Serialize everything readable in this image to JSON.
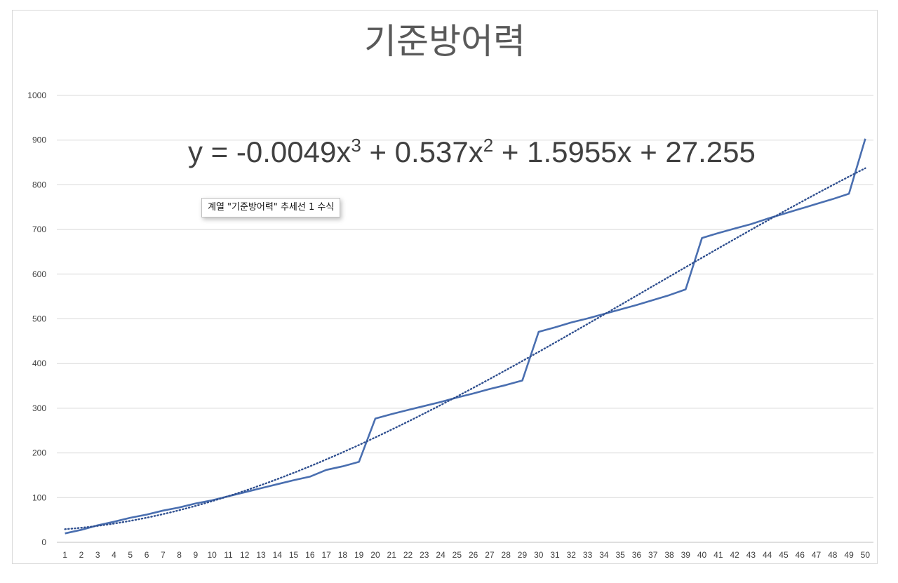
{
  "chart_data": {
    "type": "line",
    "title": "기준방어력",
    "xlabel": "",
    "ylabel": "",
    "ylim": [
      0,
      1000
    ],
    "y_ticks": [
      0,
      100,
      200,
      300,
      400,
      500,
      600,
      700,
      800,
      900,
      1000
    ],
    "grid": true,
    "legend": "none",
    "categories": [
      "1",
      "2",
      "3",
      "4",
      "5",
      "6",
      "7",
      "8",
      "9",
      "10",
      "11",
      "12",
      "13",
      "14",
      "15",
      "16",
      "17",
      "18",
      "19",
      "20",
      "21",
      "22",
      "23",
      "24",
      "25",
      "26",
      "27",
      "28",
      "29",
      "30",
      "31",
      "32",
      "33",
      "34",
      "35",
      "36",
      "37",
      "38",
      "39",
      "40",
      "41",
      "42",
      "43",
      "44",
      "45",
      "46",
      "47",
      "48",
      "49",
      "50"
    ],
    "series": [
      {
        "color": "#4a6fb0",
        "values": [
          20,
          28,
          38,
          46,
          55,
          62,
          71,
          78,
          87,
          94,
          103,
          112,
          121,
          130,
          139,
          147,
          162,
          170,
          180,
          277,
          287,
          296,
          305,
          314,
          324,
          333,
          343,
          352,
          362,
          471,
          481,
          492,
          501,
          511,
          521,
          531,
          542,
          553,
          566,
          681,
          692,
          702,
          712,
          724,
          735,
          746,
          757,
          768,
          780,
          903
        ]
      }
    ],
    "trendline": {
      "type": "polynomial",
      "order": 3,
      "style": "dotted",
      "color": "#2f4f8f",
      "coefficients": [
        -0.0049,
        0.537,
        1.5955,
        27.255
      ],
      "equation_parts": {
        "lead": "y = -0.0049x",
        "exp1": "3",
        "mid": " + 0.537x",
        "exp2": "2",
        "tail": " + 1.5955x + 27.255"
      }
    }
  },
  "tooltip": {
    "text": "계열 \"기준방어력\" 추세선 1 수식"
  }
}
